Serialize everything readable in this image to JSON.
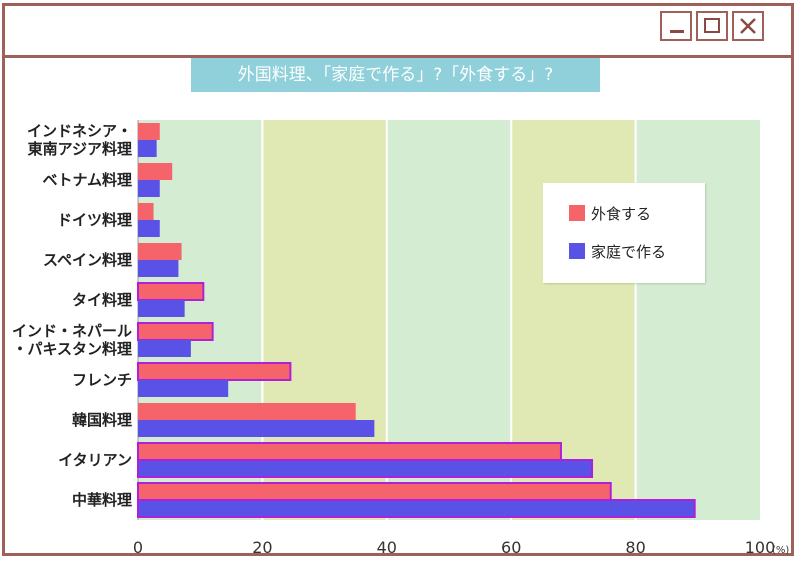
{
  "window": {
    "minimize_icon": "minimize-icon",
    "maximize_icon": "maximize-icon",
    "close_icon": "close-icon",
    "border_color": "#a0605a"
  },
  "chart_data": {
    "type": "bar",
    "orientation": "horizontal",
    "title": "外国料理、「家庭で作る」?「外食する」?",
    "categories": [
      "インドネシア・\n東南アジア料理",
      "ベトナム料理",
      "ドイツ料理",
      "スペイン料理",
      "タイ料理",
      "インド・ネパール\n・パキスタン料理",
      "フレンチ",
      "韓国料理",
      "イタリアン",
      "中華料理"
    ],
    "series": [
      {
        "name": "外食する",
        "color": "#f4646a",
        "values": [
          3.5,
          5.5,
          2.5,
          7,
          10.5,
          12,
          24.5,
          35,
          68,
          76
        ]
      },
      {
        "name": "家庭で作る",
        "color": "#5a52e6",
        "values": [
          3,
          3.5,
          3.5,
          6.5,
          7.5,
          8.5,
          14.5,
          38,
          73,
          89.5
        ]
      }
    ],
    "highlighted_bars": {
      "外食する": [
        false,
        false,
        false,
        false,
        true,
        true,
        true,
        false,
        true,
        true
      ],
      "家庭で作る": [
        false,
        false,
        false,
        false,
        false,
        false,
        false,
        false,
        true,
        true
      ]
    },
    "xlim": [
      0,
      100
    ],
    "xticks": [
      "0",
      "20",
      "40",
      "60",
      "80",
      "100"
    ],
    "xunit": "(%)",
    "legend": {
      "position": "top-right",
      "items": [
        "外食する",
        "家庭で作る"
      ]
    },
    "background_bands": [
      "#d4ecd2",
      "#e0e8b4",
      "#d4ecd2",
      "#e0e8b4",
      "#d4ecd2"
    ],
    "highlight_border_color": "#b020d8"
  }
}
